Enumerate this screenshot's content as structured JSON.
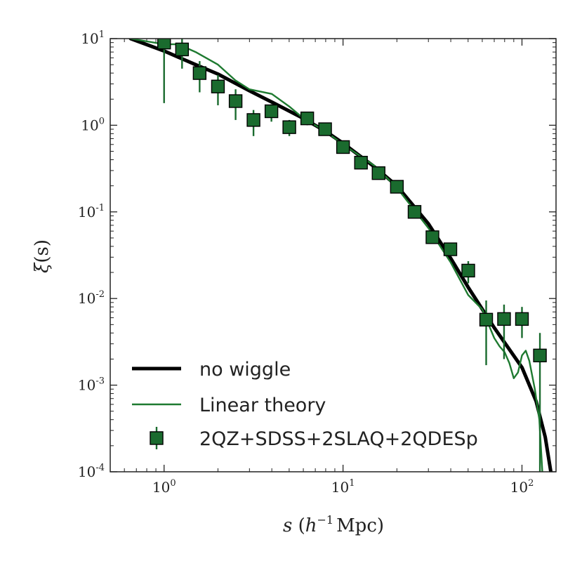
{
  "chart_data": {
    "type": "scatter",
    "xscale": "log",
    "yscale": "log",
    "xlim": [
      0.5,
      155
    ],
    "ylim": [
      0.0001,
      10
    ],
    "xlabel_parts": {
      "var": "s",
      "open": "(",
      "unit_base": "h",
      "unit_exp": "−1",
      "unit": "Mpc",
      "close": ")"
    },
    "ylabel_parts": {
      "var": "ξ",
      "arg": "(s)"
    },
    "x_ticks": [
      {
        "value": 1,
        "base": "10",
        "exp": "0"
      },
      {
        "value": 10,
        "base": "10",
        "exp": "1"
      },
      {
        "value": 100,
        "base": "10",
        "exp": "2"
      }
    ],
    "y_ticks": [
      {
        "value": 0.0001,
        "base": "10",
        "exp": "-4"
      },
      {
        "value": 0.001,
        "base": "10",
        "exp": "-3"
      },
      {
        "value": 0.01,
        "base": "10",
        "exp": "-2"
      },
      {
        "value": 0.1,
        "base": "10",
        "exp": "-1"
      },
      {
        "value": 1,
        "base": "10",
        "exp": "0"
      },
      {
        "value": 10,
        "base": "10",
        "exp": "1"
      }
    ],
    "legend": {
      "placement": "lower-left",
      "entries": [
        {
          "label": "no wiggle",
          "kind": "thick-line",
          "color": "#000000"
        },
        {
          "label": "Linear theory",
          "kind": "thin-line",
          "color": "#1e7a30"
        },
        {
          "label": "2QZ+SDSS+2SLAQ+2QDESp",
          "kind": "marker",
          "color": "#1a6b2e"
        }
      ]
    },
    "series": [
      {
        "name": "no wiggle",
        "kind": "line",
        "color": "#000000",
        "points": [
          [
            0.65,
            10.0
          ],
          [
            1.0,
            7.2
          ],
          [
            1.5,
            5.0
          ],
          [
            2.0,
            3.9
          ],
          [
            3.0,
            2.5
          ],
          [
            4.0,
            1.85
          ],
          [
            6.0,
            1.2
          ],
          [
            8.0,
            0.85
          ],
          [
            10.0,
            0.62
          ],
          [
            15.0,
            0.33
          ],
          [
            20.0,
            0.2
          ],
          [
            30.0,
            0.073
          ],
          [
            40.0,
            0.029
          ],
          [
            50.0,
            0.0135
          ],
          [
            70.0,
            0.0046
          ],
          [
            100.0,
            0.0016
          ],
          [
            120.0,
            0.00065
          ],
          [
            135.0,
            0.00025
          ],
          [
            145.0,
            0.0001
          ]
        ]
      },
      {
        "name": "Linear theory",
        "kind": "line",
        "color": "#1e7a30",
        "points": [
          [
            0.65,
            10.0
          ],
          [
            1.0,
            8.6
          ],
          [
            1.2,
            8.6
          ],
          [
            1.5,
            7.0
          ],
          [
            2.0,
            5.0
          ],
          [
            2.5,
            3.3
          ],
          [
            3.0,
            2.6
          ],
          [
            4.0,
            2.3
          ],
          [
            5.0,
            1.65
          ],
          [
            6.0,
            1.2
          ],
          [
            8.0,
            0.85
          ],
          [
            10.0,
            0.6
          ],
          [
            15.0,
            0.34
          ],
          [
            20.0,
            0.19
          ],
          [
            30.0,
            0.065
          ],
          [
            40.0,
            0.026
          ],
          [
            50.0,
            0.011
          ],
          [
            60.0,
            0.0075
          ],
          [
            70.0,
            0.0035
          ],
          [
            75.0,
            0.0028
          ],
          [
            80.0,
            0.0024
          ],
          [
            85.0,
            0.0018
          ],
          [
            90.0,
            0.0012
          ],
          [
            95.0,
            0.0014
          ],
          [
            100.0,
            0.0022
          ],
          [
            105.0,
            0.0025
          ],
          [
            110.0,
            0.0019
          ],
          [
            118.0,
            0.0009
          ],
          [
            125.0,
            0.0004
          ],
          [
            130.0,
            0.0001
          ]
        ]
      },
      {
        "name": "2QZ+SDSS+2SLAQ+2QDESp",
        "kind": "markers",
        "color": "#1a6b2e",
        "points": [
          {
            "x": 1.0,
            "y": 9.0,
            "ylo": 1.8,
            "yhi": 12.0
          },
          {
            "x": 1.26,
            "y": 7.5,
            "ylo": 4.5,
            "yhi": 10.0
          },
          {
            "x": 1.58,
            "y": 4.0,
            "ylo": 2.4,
            "yhi": 5.5
          },
          {
            "x": 2.0,
            "y": 2.8,
            "ylo": 1.7,
            "yhi": 3.8
          },
          {
            "x": 2.51,
            "y": 1.9,
            "ylo": 1.15,
            "yhi": 2.6
          },
          {
            "x": 3.16,
            "y": 1.15,
            "ylo": 0.75,
            "yhi": 1.5
          },
          {
            "x": 3.98,
            "y": 1.45,
            "ylo": 1.1,
            "yhi": 1.75
          },
          {
            "x": 5.01,
            "y": 0.95,
            "ylo": 0.75,
            "yhi": 1.15
          },
          {
            "x": 6.31,
            "y": 1.2,
            "ylo": 1.0,
            "yhi": 1.4
          },
          {
            "x": 7.94,
            "y": 0.9,
            "ylo": 0.8,
            "yhi": 1.0
          },
          {
            "x": 10.0,
            "y": 0.56,
            "ylo": 0.5,
            "yhi": 0.62
          },
          {
            "x": 12.6,
            "y": 0.37,
            "ylo": 0.33,
            "yhi": 0.41
          },
          {
            "x": 15.8,
            "y": 0.28,
            "ylo": 0.25,
            "yhi": 0.31
          },
          {
            "x": 20.0,
            "y": 0.195,
            "ylo": 0.175,
            "yhi": 0.215
          },
          {
            "x": 25.1,
            "y": 0.1,
            "ylo": 0.09,
            "yhi": 0.11
          },
          {
            "x": 31.6,
            "y": 0.051,
            "ylo": 0.044,
            "yhi": 0.058
          },
          {
            "x": 39.8,
            "y": 0.037,
            "ylo": 0.031,
            "yhi": 0.043
          },
          {
            "x": 50.1,
            "y": 0.021,
            "ylo": 0.015,
            "yhi": 0.027
          },
          {
            "x": 63.1,
            "y": 0.0057,
            "ylo": 0.0017,
            "yhi": 0.0095
          },
          {
            "x": 79.4,
            "y": 0.0058,
            "ylo": 0.002,
            "yhi": 0.0085
          },
          {
            "x": 100.0,
            "y": 0.0058,
            "ylo": 0.0035,
            "yhi": 0.008
          },
          {
            "x": 126.0,
            "y": 0.0022,
            "ylo": 0.0001,
            "yhi": 0.004
          }
        ]
      }
    ]
  }
}
